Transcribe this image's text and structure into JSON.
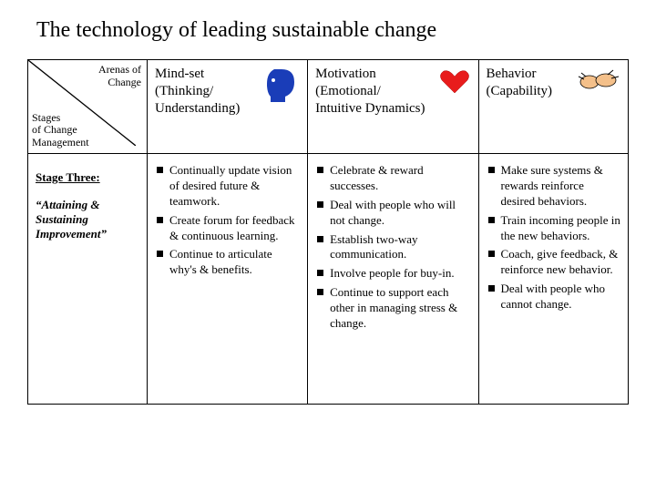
{
  "title": "The technology of leading sustainable change",
  "header": {
    "top_label_l1": "Arenas of",
    "top_label_l2": "Change",
    "bottom_label_l1": "Stages",
    "bottom_label_l2": "of Change",
    "bottom_label_l3": "Management"
  },
  "columns": {
    "mindset": {
      "l1": "Mind-set",
      "l2": "(Thinking/",
      "l3": "Understanding)"
    },
    "motivation": {
      "l1": "Motivation",
      "l2": "(Emotional/",
      "l3": "Intuitive Dynamics)"
    },
    "behavior": {
      "l1": "Behavior",
      "l2": "(Capability)"
    }
  },
  "row": {
    "stage_name": "Stage Three:",
    "stage_sub": "“Attaining & Sustaining Improvement”",
    "mindset": [
      "Continually update vision of desired future & teamwork.",
      "Create forum for feedback & continuous learning.",
      "Continue to articulate why's & benefits."
    ],
    "motivation": [
      "Celebrate & reward successes.",
      "Deal with people who will not change.",
      "Establish two-way communication.",
      "Involve people for buy-in.",
      "Continue to support each other in managing stress & change."
    ],
    "behavior": [
      "Make sure systems & rewards reinforce desired behaviors.",
      "Train incoming people in the new behaviors.",
      "Coach, give feedback, & reinforce new behavior.",
      "Deal with people who cannot change."
    ]
  },
  "colors": {
    "head_blue": "#1a3db8",
    "heart_red": "#e81c1c",
    "skin": "#f4c08a",
    "black": "#000000"
  }
}
